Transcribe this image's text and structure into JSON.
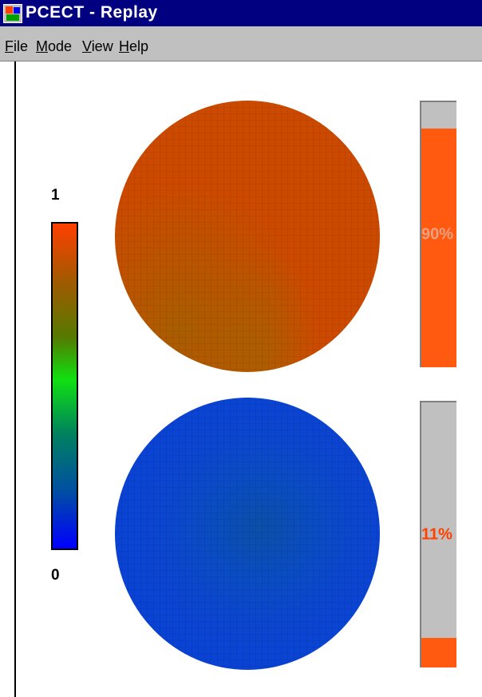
{
  "window": {
    "title": "PCECT - Replay",
    "icon": "pcect-app-icon"
  },
  "menu": {
    "items": [
      "File",
      "Mode",
      "View",
      "Help"
    ]
  },
  "colorbar": {
    "max_label": "1",
    "min_label": "0",
    "colors": [
      "#ff4000",
      "#a05a00",
      "#10e010",
      "#0050a0",
      "#0000ff"
    ]
  },
  "displays": {
    "top": {
      "gauge_value": 0.9,
      "gauge_label": "90%",
      "fill_color": "#ff5a10",
      "label_color": "#e8a080"
    },
    "bottom": {
      "gauge_value": 0.11,
      "gauge_label": "11%",
      "fill_color": "#ff5a10",
      "label_color": "#ff4000"
    }
  }
}
